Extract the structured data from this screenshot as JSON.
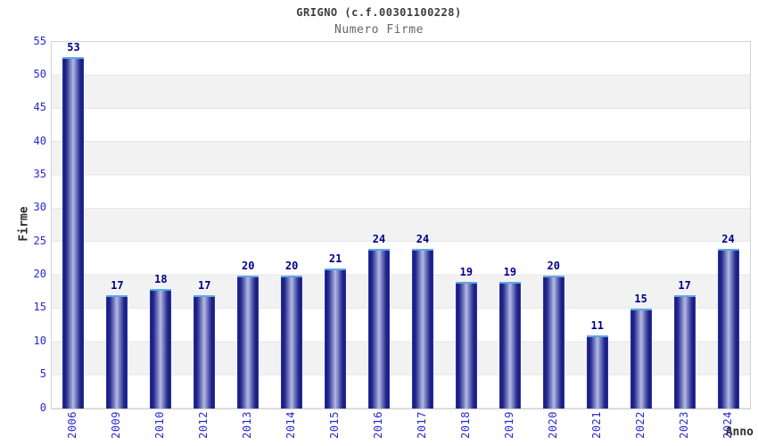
{
  "chart_data": {
    "type": "bar",
    "title": "GRIGNO (c.f.00301100228)",
    "subtitle": "Numero Firme",
    "xlabel": "Anno",
    "ylabel": "Firme",
    "categories": [
      "2006",
      "2009",
      "2010",
      "2012",
      "2013",
      "2014",
      "2015",
      "2016",
      "2017",
      "2018",
      "2019",
      "2020",
      "2021",
      "2022",
      "2023",
      "2024"
    ],
    "values": [
      53,
      17,
      18,
      17,
      20,
      20,
      21,
      24,
      24,
      19,
      19,
      20,
      11,
      15,
      17,
      24
    ],
    "ylim": [
      0,
      55
    ],
    "yticks": [
      0,
      5,
      10,
      15,
      20,
      25,
      30,
      35,
      40,
      45,
      50,
      55
    ],
    "grid": "horizontal-bands",
    "legend": "none",
    "colors": {
      "bar_edge": "#2c39cf",
      "bar_dark": "#181b74",
      "bar_light": "#b5bae5",
      "bar_cap": "#5ba7e9",
      "value_label": "#00008b",
      "tick_label": "#2828d2",
      "band_gray": "#f2f2f2",
      "band_white": "#ffffff",
      "plot_border": "#d3d3d3",
      "title_text": "#3c3c3c",
      "subtitle_text": "#666666"
    }
  }
}
